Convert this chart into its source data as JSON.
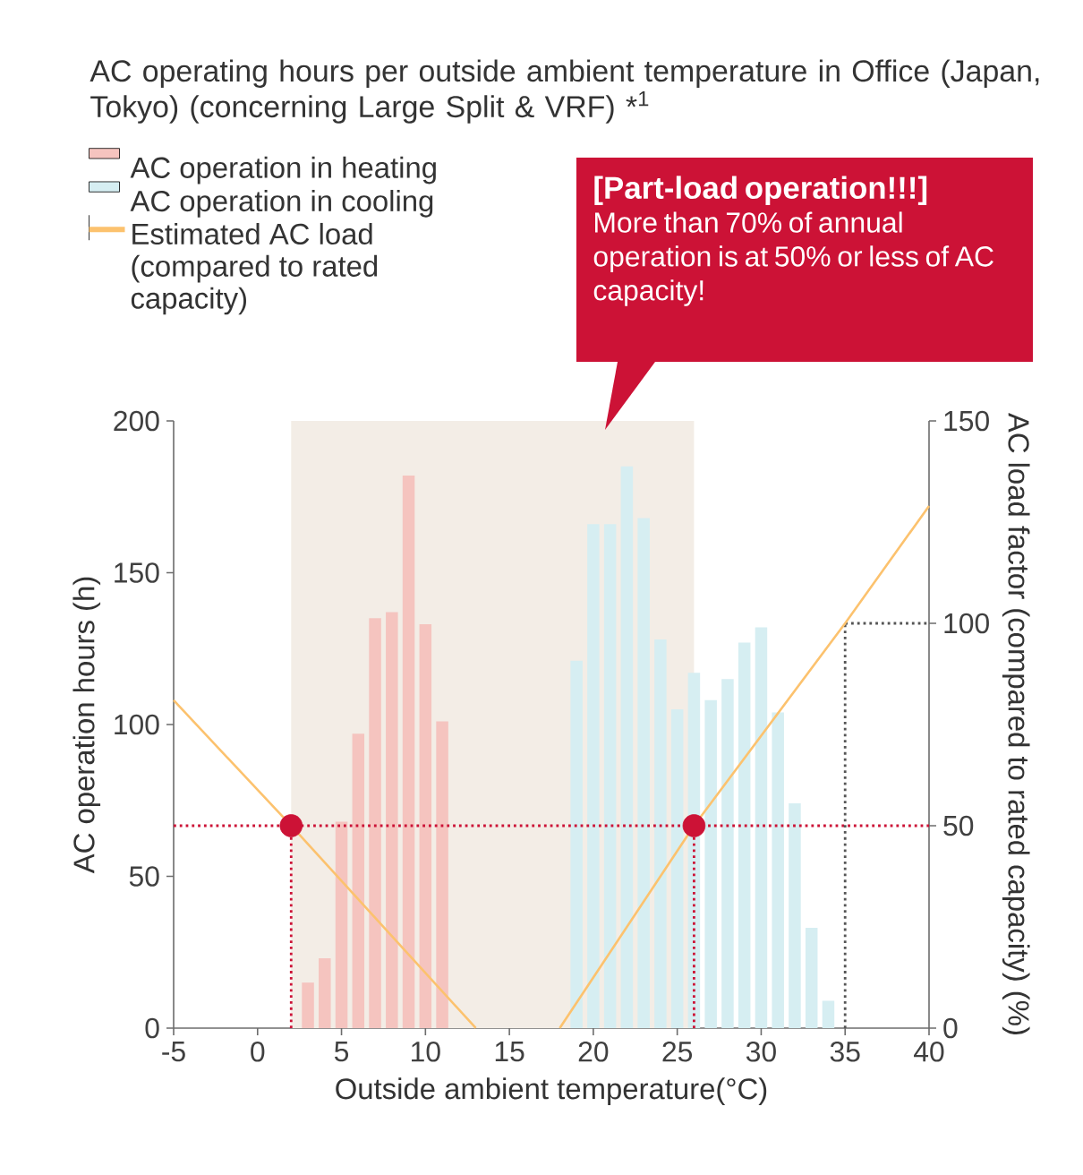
{
  "chart_data": {
    "type": "bar",
    "title": "AC operating hours per outside ambient temperature in Office (Japan, Tokyo) (concerning Large Split & VRF) *$^{1}$",
    "xlabel": "Outside ambient temperature(°C)",
    "ylabel": "AC operation hours (h)",
    "y2label": "AC load factor (compared to rated capacity) (%)",
    "xlim": [
      -5,
      40
    ],
    "xticks": [
      -5,
      0,
      5,
      10,
      15,
      20,
      25,
      30,
      35,
      40
    ],
    "ylim": [
      0,
      200
    ],
    "yticks": [
      0,
      50,
      100,
      150,
      200
    ],
    "y2lim": [
      0,
      150
    ],
    "y2ticks": [
      0,
      50,
      100,
      150
    ],
    "legend": "top left",
    "series": [
      {
        "name": "AC operation in heating",
        "color": "#f5c4bf",
        "x": [
          3,
          4,
          5,
          6,
          7,
          8,
          9,
          10,
          11
        ],
        "values": [
          15,
          23,
          68,
          97,
          135,
          137,
          182,
          133,
          101
        ]
      },
      {
        "name": "AC operation in cooling",
        "color": "#d6eef2",
        "x": [
          19,
          20,
          21,
          22,
          23,
          24,
          25,
          26,
          27,
          28,
          29,
          30,
          31,
          32,
          33,
          34
        ],
        "values": [
          121,
          166,
          166,
          185,
          168,
          128,
          105,
          117,
          108,
          115,
          127,
          132,
          104,
          74,
          33,
          9
        ]
      },
      {
        "name": "Estimated AC load (compared to rated capacity)",
        "type": "line",
        "axis": "y2",
        "color": "#fcc26e",
        "marker": "none",
        "line_style": "solid",
        "x": [
          -5,
          2,
          13,
          15.5,
          18,
          26,
          35,
          40
        ],
        "values": [
          81,
          50,
          0,
          null,
          0,
          50,
          100,
          129
        ]
      },
      {
        "type": "scatter",
        "axis": "y2",
        "color": "#cc1236",
        "marker": "circle",
        "x": [
          2,
          26
        ],
        "values": [
          50,
          50
        ]
      }
    ],
    "ref_lines": [
      {
        "axis": "y2",
        "value": 50,
        "color": "#cc1236",
        "line_style": "dotted"
      },
      {
        "axis": "x",
        "value": 2,
        "color": "#cc1236",
        "line_style": "dotted"
      },
      {
        "axis": "x",
        "value": 26,
        "color": "#cc1236",
        "line_style": "dotted"
      },
      {
        "axis": "x",
        "value": 35,
        "color": "#555555",
        "line_style": "dotted"
      },
      {
        "axis": "y2",
        "value": 100,
        "color": "#555555",
        "line_style": "dotted"
      }
    ],
    "bands": [
      {
        "axis": "x",
        "from": 2,
        "to": 26,
        "color": "#f3ede6"
      }
    ],
    "annotations": [
      "[Part-load operation!!!]",
      "More than 70% of annual operation is at 50% or less of AC capacity!"
    ]
  }
}
